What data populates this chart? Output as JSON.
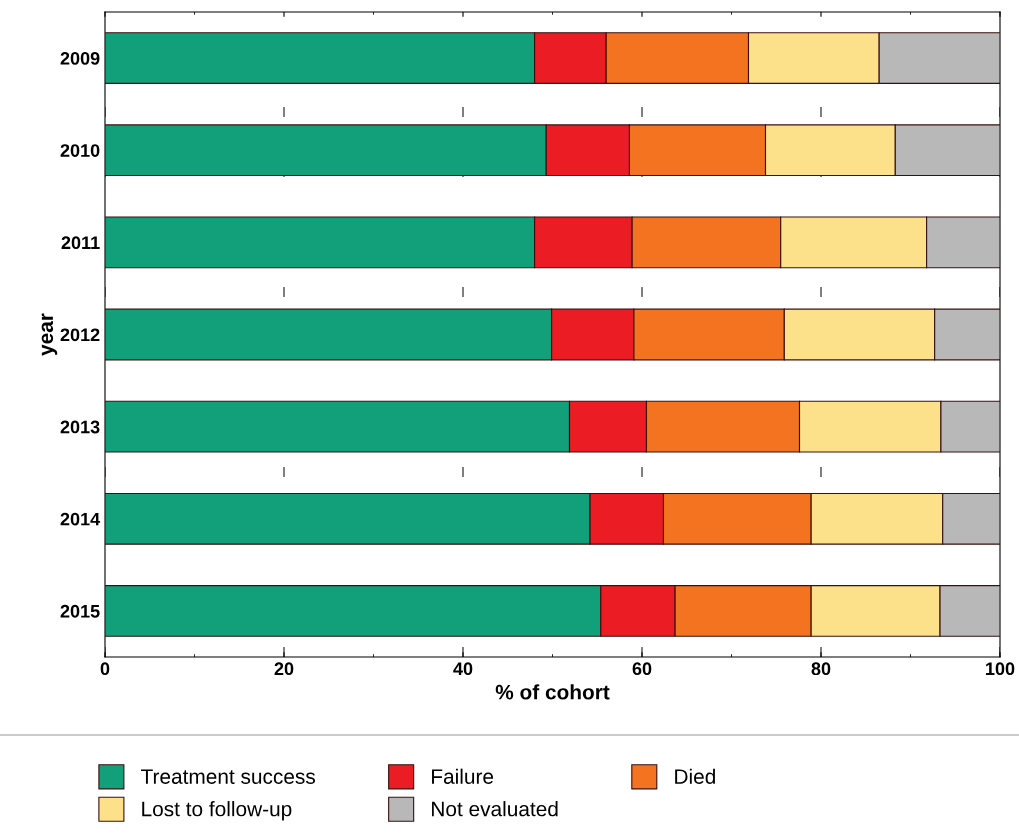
{
  "chart_data": {
    "type": "bar",
    "orientation": "horizontal",
    "stacked": true,
    "xlabel": "% of cohort",
    "ylabel": "year",
    "categories": [
      "2009",
      "2010",
      "2011",
      "2012",
      "2013",
      "2014",
      "2015"
    ],
    "series": [
      {
        "name": "Treatment success",
        "color": "#12a07a",
        "values": [
          48.0,
          49.3,
          48.0,
          49.9,
          51.9,
          54.2,
          55.4
        ]
      },
      {
        "name": "Failure",
        "color": "#ec1c24",
        "values": [
          8.0,
          9.3,
          10.9,
          9.2,
          8.6,
          8.2,
          8.3
        ]
      },
      {
        "name": "Died",
        "color": "#f47321",
        "values": [
          15.9,
          15.2,
          16.6,
          16.8,
          17.1,
          16.5,
          15.2
        ]
      },
      {
        "name": "Lost to follow-up",
        "color": "#fde08a",
        "values": [
          14.6,
          14.5,
          16.3,
          16.8,
          15.8,
          14.7,
          14.4
        ]
      },
      {
        "name": "Not evaluated",
        "color": "#b8b8b8",
        "values": [
          13.5,
          11.7,
          8.2,
          7.3,
          6.6,
          6.4,
          6.7
        ]
      }
    ],
    "xlim": [
      0,
      100
    ],
    "xticks": [
      0,
      20,
      40,
      60,
      80,
      100
    ],
    "grid": "x",
    "legend": "bottom"
  }
}
